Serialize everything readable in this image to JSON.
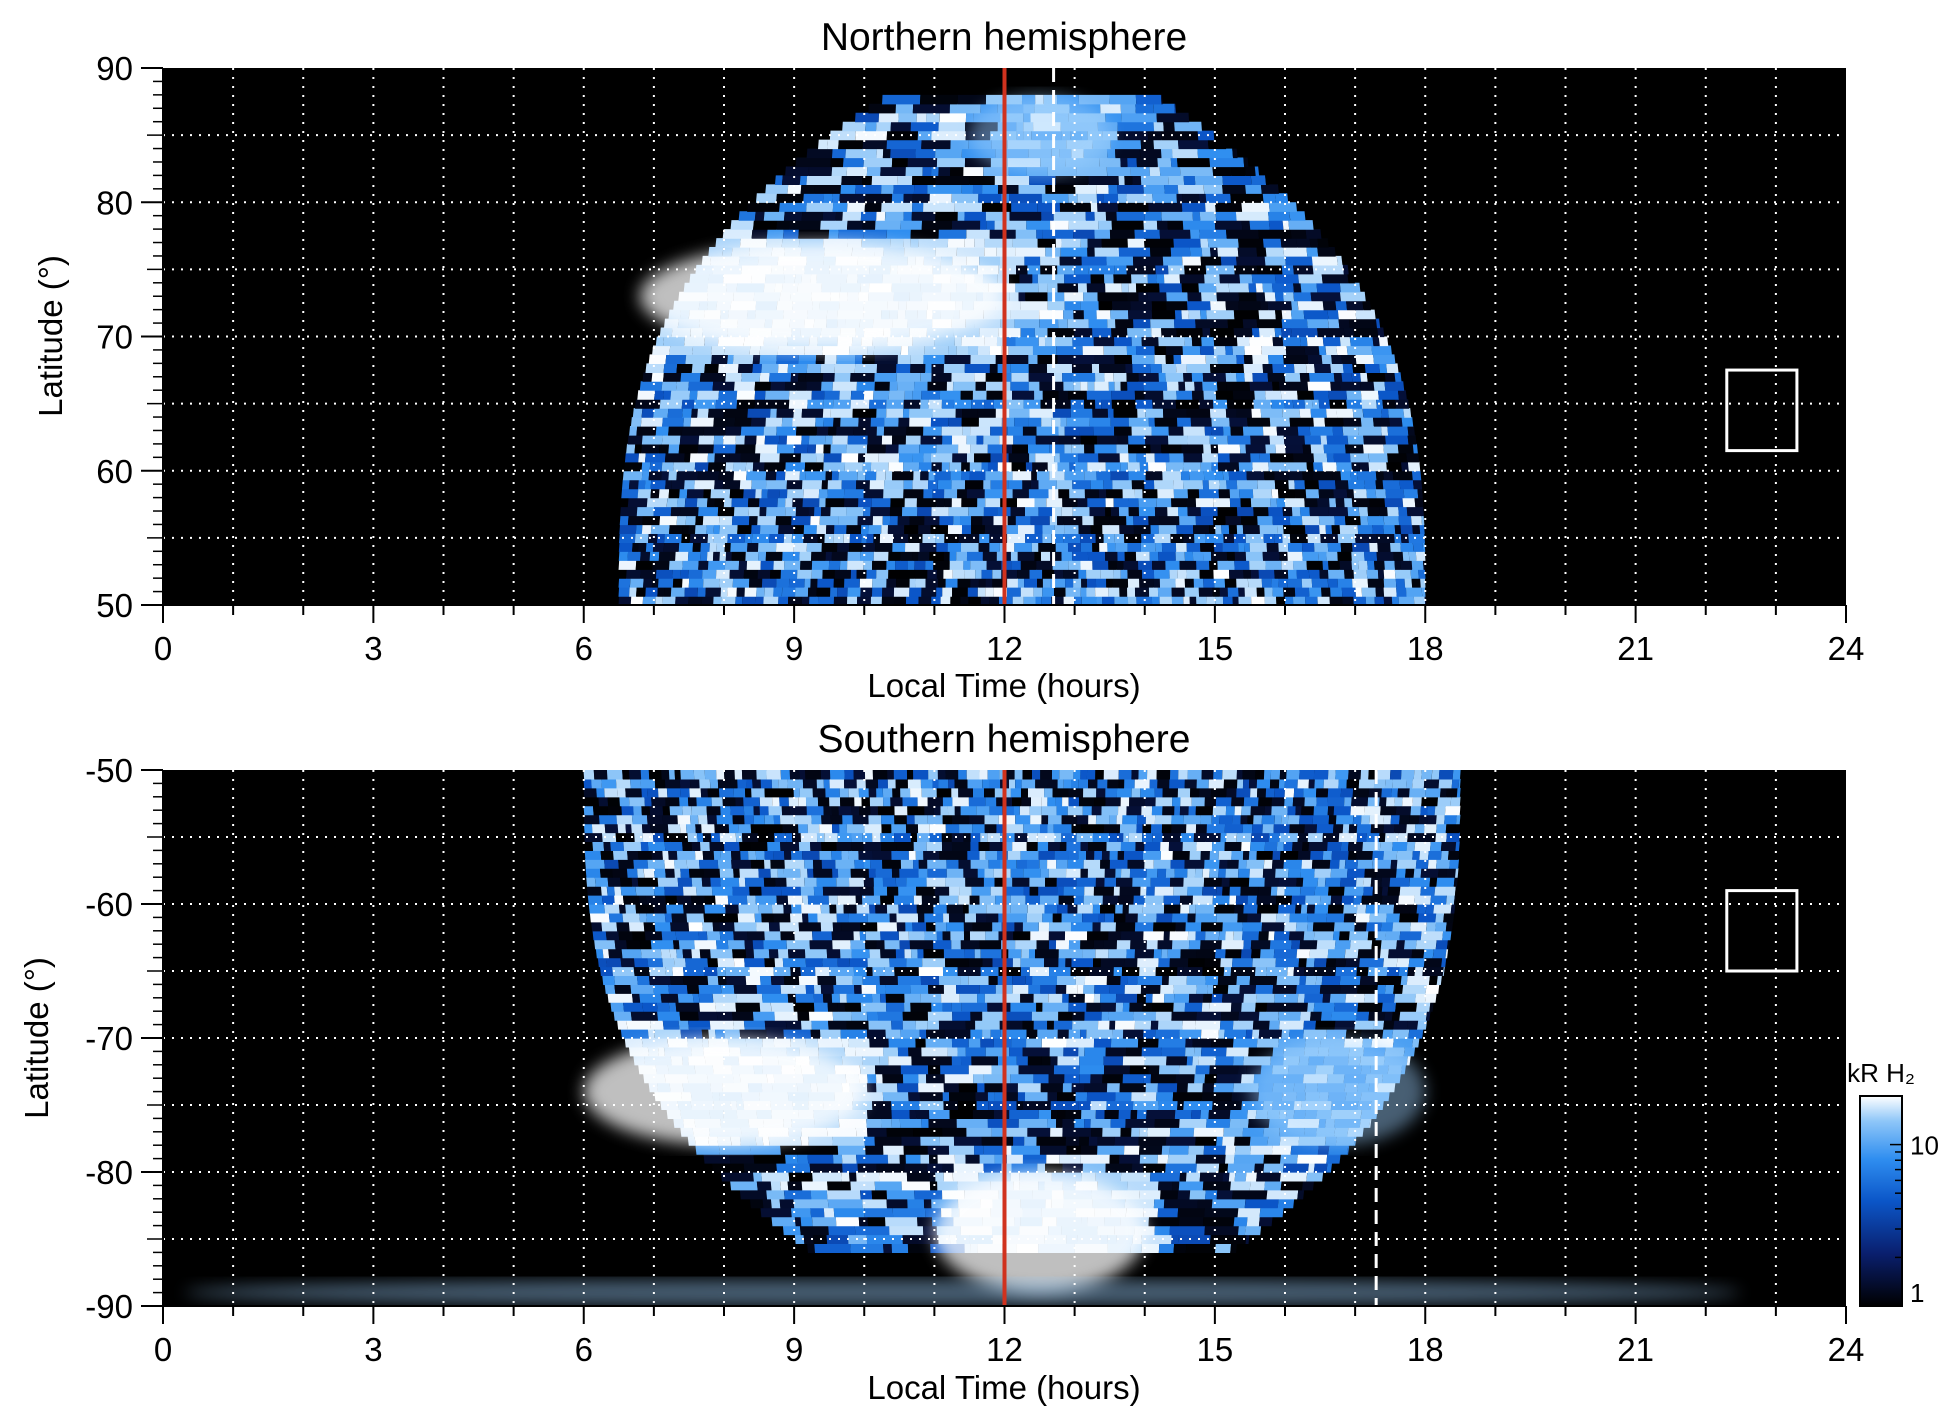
{
  "chart_data": [
    {
      "type": "heatmap",
      "title": "Northern hemisphere",
      "xlabel": "Local Time (hours)",
      "ylabel": "Latitude (°)",
      "xlim": [
        0,
        24
      ],
      "ylim": [
        50,
        90
      ],
      "xticks": [
        "0",
        "3",
        "6",
        "9",
        "12",
        "15",
        "18",
        "21",
        "24"
      ],
      "yticks": [
        "50",
        "60",
        "70",
        "80",
        "90"
      ],
      "grid": true,
      "noon_line_local_time": 12,
      "dashed_line_local_time": 12.7,
      "coverage": {
        "local_time_start": 6.5,
        "local_time_end": 18.0,
        "latitude_max": 88
      },
      "bright_regions": [
        {
          "local_time": [
            6.8,
            12.0
          ],
          "latitude": [
            69,
            77
          ],
          "level": "high"
        },
        {
          "local_time": [
            11.5,
            13.5
          ],
          "latitude": [
            82,
            88
          ],
          "level": "medium"
        }
      ],
      "box": {
        "local_time": [
          22.3,
          23.3
        ],
        "latitude": [
          61.5,
          67.5
        ]
      }
    },
    {
      "type": "heatmap",
      "title": "Southern hemisphere",
      "xlabel": "Local Time (hours)",
      "ylabel": "Latitude (°)",
      "xlim": [
        0,
        24
      ],
      "ylim": [
        -90,
        -50
      ],
      "xticks": [
        "0",
        "3",
        "6",
        "9",
        "12",
        "15",
        "18",
        "21",
        "24"
      ],
      "yticks": [
        "-90",
        "-80",
        "-70",
        "-60",
        "-50"
      ],
      "grid": true,
      "noon_line_local_time": 12,
      "dashed_line_local_time": 17.3,
      "coverage": {
        "local_time_start": 6.0,
        "local_time_end": 18.5,
        "latitude_min": -86
      },
      "bright_regions": [
        {
          "local_time": [
            6.0,
            10.0
          ],
          "latitude": [
            -78,
            -70
          ],
          "level": "high"
        },
        {
          "local_time": [
            11.0,
            14.0
          ],
          "latitude": [
            -89,
            -80
          ],
          "level": "high"
        },
        {
          "local_time": [
            15.5,
            18.0
          ],
          "latitude": [
            -78,
            -70
          ],
          "level": "medium"
        },
        {
          "local_time": [
            0.3,
            22.5
          ],
          "latitude": [
            -90,
            -88
          ],
          "level": "medium"
        }
      ],
      "box": {
        "local_time": [
          22.3,
          23.3
        ],
        "latitude": [
          -65,
          -59
        ]
      }
    }
  ],
  "colorbar": {
    "label": "kR H₂",
    "ticks": [
      "1",
      "10"
    ],
    "tick_values": [
      1,
      10
    ],
    "range": [
      1,
      20
    ],
    "scale": "log",
    "colors": [
      "#000000",
      "#0a1f6e",
      "#0b56c8",
      "#2f8ef0",
      "#8ec6f8",
      "#ffffff"
    ]
  },
  "colors": {
    "noon_line": "#d0321e",
    "grid": "#ffffff",
    "background": "#000000"
  }
}
